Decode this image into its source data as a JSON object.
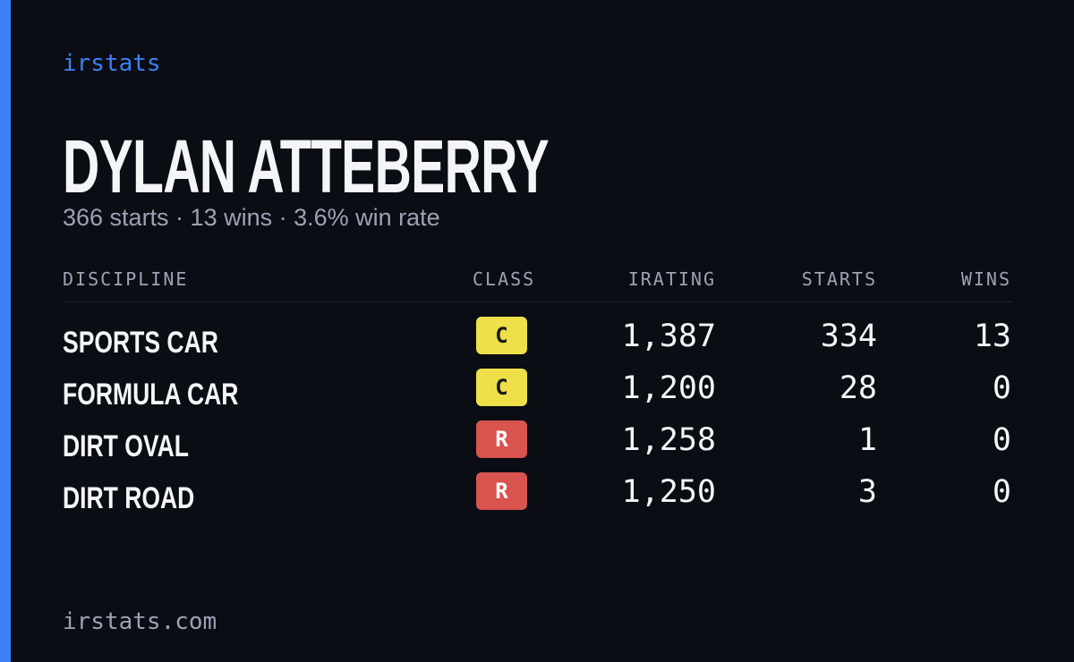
{
  "brand": "irstats",
  "profile": {
    "name": "DYLAN ATTEBERRY",
    "summary": "366 starts · 13 wins · 3.6% win rate"
  },
  "table": {
    "headers": [
      "DISCIPLINE",
      "CLASS",
      "IRATING",
      "STARTS",
      "WINS"
    ],
    "rows": [
      {
        "discipline": "SPORTS CAR",
        "class": "C",
        "class_color": "#efe04a",
        "class_text_color": "#1a1a1a",
        "irating": "1,387",
        "starts": 334,
        "wins": 13
      },
      {
        "discipline": "FORMULA CAR",
        "class": "C",
        "class_color": "#efe04a",
        "class_text_color": "#1a1a1a",
        "irating": "1,200",
        "starts": 28,
        "wins": 0
      },
      {
        "discipline": "DIRT OVAL",
        "class": "R",
        "class_color": "#d9534f",
        "class_text_color": "#ffffff",
        "irating": "1,258",
        "starts": 1,
        "wins": 0
      },
      {
        "discipline": "DIRT ROAD",
        "class": "R",
        "class_color": "#d9534f",
        "class_text_color": "#ffffff",
        "irating": "1,250",
        "starts": 3,
        "wins": 0
      }
    ]
  },
  "footer": "irstats.com"
}
